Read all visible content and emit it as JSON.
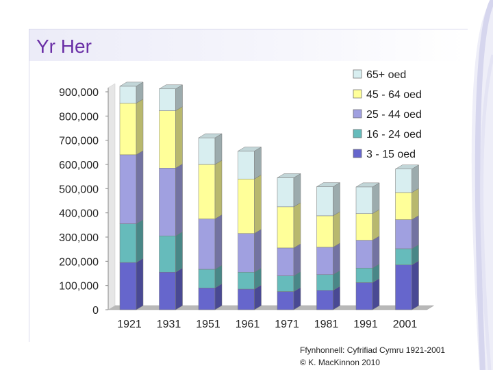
{
  "slide": {
    "title": "Yr Her",
    "source_line1": "Ffynhonnell: Cyfrifiad Cymru 1921-2001",
    "source_line2": "© K. MacKinnon 2010"
  },
  "chart_data": {
    "type": "bar",
    "stacked": true,
    "three_d": true,
    "title": "",
    "xlabel": "",
    "ylabel": "",
    "categories": [
      "1921",
      "1931",
      "1951",
      "1961",
      "1971",
      "1981",
      "1991",
      "2001"
    ],
    "ylim": [
      0,
      900000
    ],
    "yticks": [
      0,
      100000,
      200000,
      300000,
      400000,
      500000,
      600000,
      700000,
      800000,
      900000
    ],
    "ytick_labels": [
      "0",
      "100,000",
      "200,000",
      "300,000",
      "400,000",
      "500,000",
      "600,000",
      "700,000",
      "800,000",
      "900,000"
    ],
    "legend_position": "top-right",
    "grid": false,
    "series": [
      {
        "name": "3 - 15 oed",
        "color": "#6666cc",
        "values": [
          195000,
          155000,
          90000,
          85000,
          75000,
          80000,
          112000,
          185000
        ]
      },
      {
        "name": "16 - 24 oed",
        "color": "#66bbbb",
        "values": [
          160000,
          150000,
          77000,
          70000,
          65000,
          65000,
          60000,
          67000
        ]
      },
      {
        "name": "25 - 44 oed",
        "color": "#a0a0e0",
        "values": [
          285000,
          280000,
          208000,
          160000,
          115000,
          113000,
          115000,
          120000
        ]
      },
      {
        "name": "45 - 64 oed",
        "color": "#ffff99",
        "values": [
          213000,
          237000,
          225000,
          225000,
          170000,
          130000,
          110000,
          112000
        ]
      },
      {
        "name": "65+ oed",
        "color": "#d8eef0",
        "values": [
          70000,
          90000,
          110000,
          115000,
          120000,
          120000,
          110000,
          97000
        ]
      }
    ]
  }
}
